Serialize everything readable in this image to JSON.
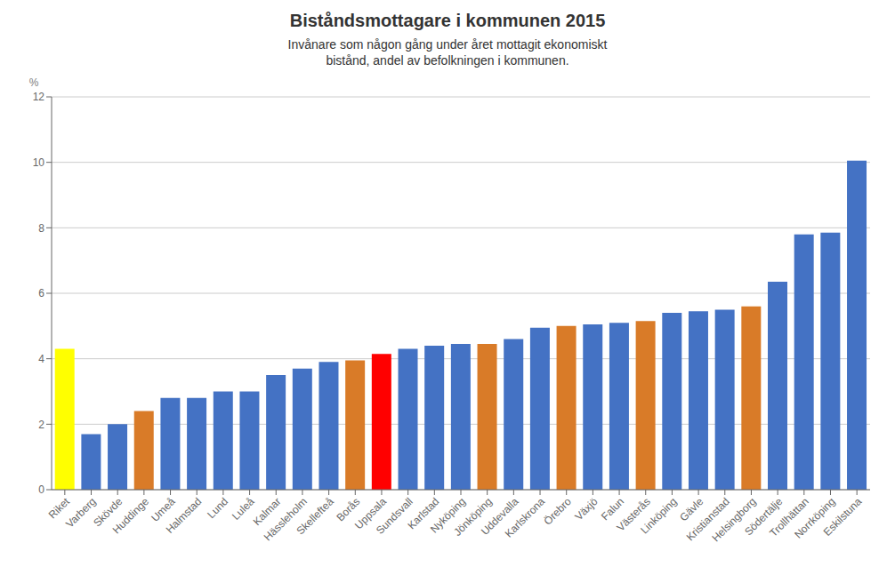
{
  "chart_data": {
    "type": "bar",
    "title": "Biståndsmottagare i kommunen 2015",
    "subtitle": "Invånare som någon gång under året mottagit ekonomiskt\nbistånd, andel av befolkningen i kommunen.",
    "ylabel": "%",
    "categories": [
      "Riket",
      "Varberg",
      "Skövde",
      "Huddinge",
      "Umeå",
      "Halmstad",
      "Lund",
      "Luleå",
      "Kalmar",
      "Hässleholm",
      "Skellefteå",
      "Borås",
      "Uppsala",
      "Sundsvall",
      "Karlstad",
      "Nyköping",
      "Jönköping",
      "Uddevalla",
      "Karlskrona",
      "Örebro",
      "Växjö",
      "Falun",
      "Västerås",
      "Linköping",
      "Gävle",
      "Kristianstad",
      "Helsingborg",
      "Södertälje",
      "Trollhättan",
      "Norrköping",
      "Eskilstuna"
    ],
    "values": [
      4.3,
      1.7,
      2.0,
      2.4,
      2.8,
      2.8,
      3.0,
      3.0,
      3.5,
      3.7,
      3.9,
      3.95,
      4.15,
      4.3,
      4.4,
      4.45,
      4.45,
      4.6,
      4.95,
      5.0,
      5.05,
      5.1,
      5.15,
      5.4,
      5.45,
      5.5,
      5.6,
      6.35,
      7.8,
      7.85,
      10.05
    ],
    "colors": [
      "#FFFF00",
      "#4472C4",
      "#4472C4",
      "#D97B28",
      "#4472C4",
      "#4472C4",
      "#4472C4",
      "#4472C4",
      "#4472C4",
      "#4472C4",
      "#4472C4",
      "#D97B28",
      "#FF0000",
      "#4472C4",
      "#4472C4",
      "#4472C4",
      "#D97B28",
      "#4472C4",
      "#4472C4",
      "#D97B28",
      "#4472C4",
      "#4472C4",
      "#D97B28",
      "#4472C4",
      "#4472C4",
      "#4472C4",
      "#D97B28",
      "#4472C4",
      "#4472C4",
      "#4472C4",
      "#4472C4"
    ],
    "ylim": [
      0,
      12
    ],
    "yticks": [
      0,
      2,
      4,
      6,
      8,
      10,
      12
    ],
    "grid": true
  }
}
